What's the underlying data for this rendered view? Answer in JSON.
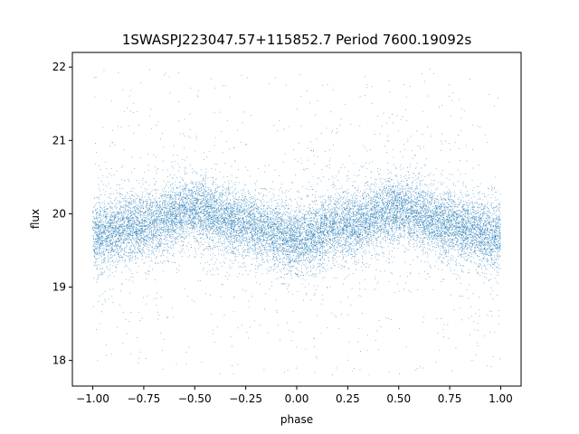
{
  "chart_data": {
    "type": "scatter",
    "title": "1SWASPJ223047.57+115852.7 Period 7600.19092s",
    "xlabel": "phase",
    "ylabel": "flux",
    "xlim": [
      -1.1,
      1.1
    ],
    "ylim": [
      17.65,
      22.2
    ],
    "xticks": [
      -1.0,
      -0.75,
      -0.5,
      -0.25,
      0.0,
      0.25,
      0.5,
      0.75,
      1.0
    ],
    "xtick_labels": [
      "−1.00",
      "−0.75",
      "−0.50",
      "−0.25",
      "0.00",
      "0.25",
      "0.50",
      "0.75",
      "1.00"
    ],
    "yticks": [
      18,
      19,
      20,
      21,
      22
    ],
    "ytick_labels": [
      "18",
      "19",
      "20",
      "21",
      "22"
    ],
    "grid": false,
    "legend": "none",
    "marker_color": "#1f77b4",
    "series": [
      {
        "x_range": [
          -1.0,
          1.0
        ],
        "trend": {
          "x": [
            -1.0,
            -0.75,
            -0.5,
            -0.25,
            0.0,
            0.25,
            0.5,
            0.75,
            1.0
          ],
          "y": [
            19.7,
            19.85,
            20.05,
            19.85,
            19.65,
            19.85,
            20.05,
            19.85,
            19.7
          ]
        },
        "core_spread": 0.22,
        "outlier_range": [
          17.8,
          22.0
        ],
        "point_count": 16000
      }
    ]
  }
}
